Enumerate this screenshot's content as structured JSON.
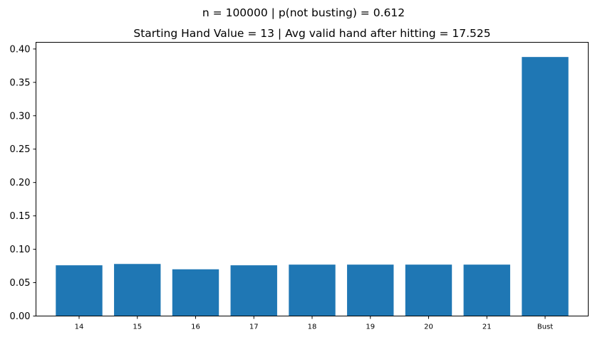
{
  "suptitle": "n = 100000 | p(not busting) = 0.612",
  "chart_data": {
    "type": "bar",
    "title": "Starting Hand Value = 13 | Avg valid hand after hitting = 17.525",
    "xlabel": "",
    "ylabel": "",
    "categories": [
      "14",
      "15",
      "16",
      "17",
      "18",
      "19",
      "20",
      "21",
      "Bust"
    ],
    "values": [
      0.076,
      0.078,
      0.07,
      0.076,
      0.077,
      0.077,
      0.077,
      0.077,
      0.388
    ],
    "ylim": [
      0,
      0.41
    ],
    "yticks": [
      0.0,
      0.05,
      0.1,
      0.15,
      0.2,
      0.25,
      0.3,
      0.35,
      0.4
    ],
    "ytick_labels": [
      "0.00",
      "0.05",
      "0.10",
      "0.15",
      "0.20",
      "0.25",
      "0.30",
      "0.35",
      "0.40"
    ],
    "bar_color": "#1f77b4",
    "grid": false,
    "legend": "none"
  }
}
